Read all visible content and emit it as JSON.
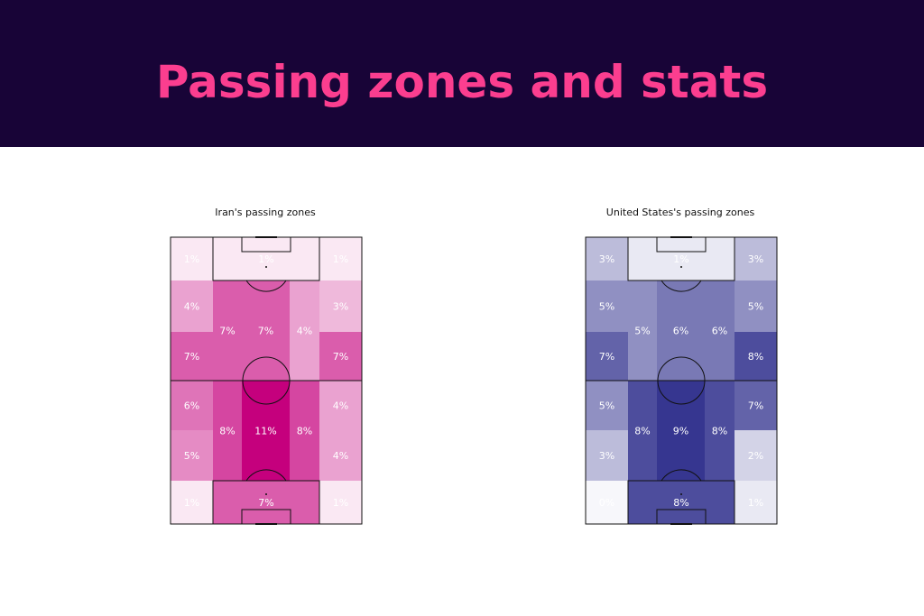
{
  "header": {
    "title": "Passing zones and stats"
  },
  "colors": {
    "banner_bg": "#180437",
    "title_color": "#fb3e8f",
    "iran_base": [
      197,
      0,
      125
    ],
    "usa_base": [
      10,
      10,
      120
    ]
  },
  "chart_data": [
    {
      "type": "heatmap",
      "title": "Iran's passing zones",
      "team": "iran",
      "cells": [
        {
          "row": 0,
          "col": 0,
          "value": 1
        },
        {
          "row": 0,
          "col": 1,
          "value": 1
        },
        {
          "row": 0,
          "col": 2,
          "value": 1
        },
        {
          "row": 1,
          "col": 0,
          "value": 4
        },
        {
          "row": 1,
          "col": 1,
          "value": 7
        },
        {
          "row": 1,
          "col": 2,
          "value": 7
        },
        {
          "row": 1,
          "col": 3,
          "value": 4
        },
        {
          "row": 1,
          "col": 4,
          "value": 3
        },
        {
          "row": 2,
          "col": 0,
          "value": 7
        },
        {
          "row": 2,
          "col": 4,
          "value": 7
        },
        {
          "row": 3,
          "col": 0,
          "value": 6
        },
        {
          "row": 3,
          "col": 1,
          "value": 8
        },
        {
          "row": 3,
          "col": 2,
          "value": 11
        },
        {
          "row": 3,
          "col": 3,
          "value": 8
        },
        {
          "row": 3,
          "col": 4,
          "value": 4
        },
        {
          "row": 4,
          "col": 0,
          "value": 5
        },
        {
          "row": 4,
          "col": 4,
          "value": 4
        },
        {
          "row": 5,
          "col": 0,
          "value": 1
        },
        {
          "row": 5,
          "col": 1,
          "value": 7
        },
        {
          "row": 5,
          "col": 2,
          "value": 1
        }
      ]
    },
    {
      "type": "heatmap",
      "title": "United States's passing zones",
      "team": "usa",
      "cells": [
        {
          "row": 0,
          "col": 0,
          "value": 3
        },
        {
          "row": 0,
          "col": 1,
          "value": 1
        },
        {
          "row": 0,
          "col": 2,
          "value": 3
        },
        {
          "row": 1,
          "col": 0,
          "value": 5
        },
        {
          "row": 1,
          "col": 1,
          "value": 5
        },
        {
          "row": 1,
          "col": 2,
          "value": 6
        },
        {
          "row": 1,
          "col": 3,
          "value": 6
        },
        {
          "row": 1,
          "col": 4,
          "value": 5
        },
        {
          "row": 2,
          "col": 0,
          "value": 7
        },
        {
          "row": 2,
          "col": 4,
          "value": 8
        },
        {
          "row": 3,
          "col": 0,
          "value": 5
        },
        {
          "row": 3,
          "col": 1,
          "value": 8
        },
        {
          "row": 3,
          "col": 2,
          "value": 9
        },
        {
          "row": 3,
          "col": 3,
          "value": 8
        },
        {
          "row": 3,
          "col": 4,
          "value": 7
        },
        {
          "row": 4,
          "col": 0,
          "value": 3
        },
        {
          "row": 4,
          "col": 4,
          "value": 2
        },
        {
          "row": 5,
          "col": 0,
          "value": 0
        },
        {
          "row": 5,
          "col": 1,
          "value": 8
        },
        {
          "row": 5,
          "col": 2,
          "value": 1
        }
      ]
    }
  ]
}
